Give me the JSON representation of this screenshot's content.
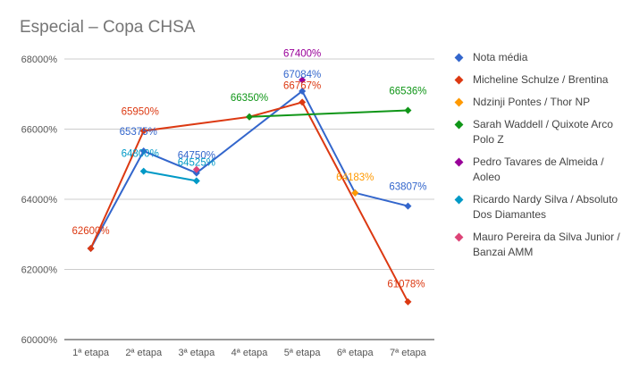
{
  "chart_data": {
    "type": "line",
    "title": "Especial – Copa CHSA",
    "categories": [
      "1ª etapa",
      "2ª etapa",
      "3ª etapa",
      "4ª etapa",
      "5ª etapa",
      "6ª etapa",
      "7ª etapa"
    ],
    "y_ticks": [
      "60000%",
      "62000%",
      "64000%",
      "66000%",
      "68000%"
    ],
    "ylim": [
      60000,
      68000
    ],
    "xlabel": "",
    "ylabel": "",
    "legend_position": "right",
    "series": [
      {
        "name": "Nota média",
        "color": "#3366cc",
        "values": [
          62600,
          65375,
          64750,
          null,
          67084,
          64183,
          63807
        ],
        "labels": [
          null,
          "65375%",
          "64750%",
          null,
          "67084%",
          null,
          "63807%"
        ]
      },
      {
        "name": "Micheline Schulze / Brentina",
        "color": "#dc3912",
        "values": [
          62600,
          65950,
          null,
          66350,
          66767,
          null,
          61078
        ],
        "labels": [
          "62600%",
          "65950%",
          null,
          null,
          "66767%",
          null,
          "61078%"
        ]
      },
      {
        "name": "Ndzinji Pontes / Thor NP",
        "color": "#ff9900",
        "values": [
          null,
          null,
          null,
          null,
          null,
          64183,
          null
        ],
        "labels": [
          null,
          null,
          null,
          null,
          null,
          "64183%",
          null
        ]
      },
      {
        "name": "Sarah Waddell / Quixote Arco Polo Z",
        "color": "#109618",
        "values": [
          null,
          null,
          null,
          66350,
          null,
          null,
          66536
        ],
        "labels": [
          null,
          null,
          null,
          "66350%",
          null,
          null,
          "66536%"
        ]
      },
      {
        "name": "Pedro Tavares de Almeida / Aoleo",
        "color": "#990099",
        "values": [
          null,
          null,
          null,
          null,
          67400,
          null,
          null
        ],
        "labels": [
          null,
          null,
          null,
          null,
          "67400%",
          null,
          null
        ]
      },
      {
        "name": "Ricardo Nardy Silva / Absoluto Dos Diamantes",
        "color": "#0099c6",
        "values": [
          null,
          64800,
          64525,
          null,
          null,
          null,
          null
        ],
        "labels": [
          null,
          "64800%",
          "64525%",
          null,
          null,
          null,
          null
        ]
      },
      {
        "name": "Mauro Pereira da Silva Junior / Banzai AMM",
        "color": "#dd4477",
        "values": [
          null,
          null,
          64850,
          null,
          null,
          null,
          null
        ],
        "labels": [
          null,
          null,
          null,
          null,
          null,
          null,
          null
        ]
      }
    ]
  }
}
